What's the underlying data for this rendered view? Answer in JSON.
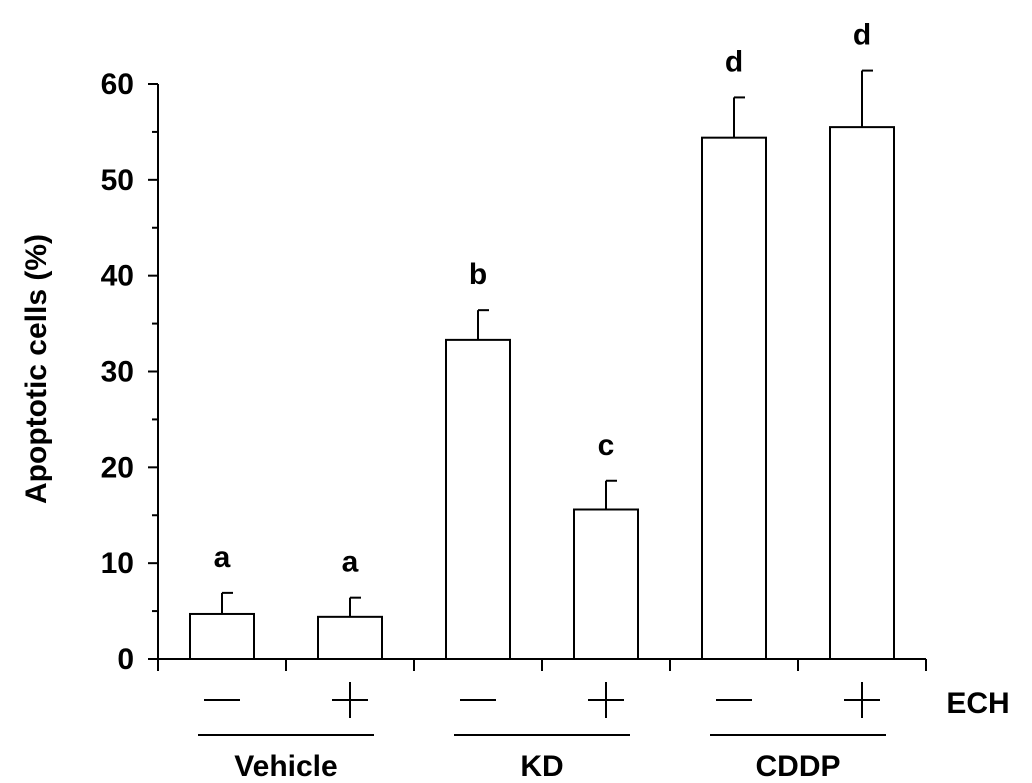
{
  "chart_data": {
    "type": "bar",
    "ylabel": "Apoptotic cells (%)",
    "ylim": [
      0,
      60
    ],
    "yticks": [
      0,
      10,
      20,
      30,
      40,
      50,
      60
    ],
    "grid": false,
    "bars": [
      {
        "group": "Vehicle",
        "ech": "—",
        "value": 4.7,
        "error": 2.2,
        "letter": "a"
      },
      {
        "group": "Vehicle",
        "ech": "+",
        "value": 4.4,
        "error": 2.0,
        "letter": "a"
      },
      {
        "group": "KD",
        "ech": "—",
        "value": 33.3,
        "error": 3.1,
        "letter": "b"
      },
      {
        "group": "KD",
        "ech": "+",
        "value": 15.6,
        "error": 3.0,
        "letter": "c"
      },
      {
        "group": "CDDP",
        "ech": "—",
        "value": 54.4,
        "error": 4.2,
        "letter": "d"
      },
      {
        "group": "CDDP",
        "ech": "+",
        "value": 55.5,
        "error": 5.9,
        "letter": "d"
      }
    ],
    "groups": [
      "Vehicle",
      "KD",
      "CDDP"
    ],
    "treatment_label": "ECH",
    "colors": {
      "bar_fill": "#ffffff",
      "stroke": "#000000"
    }
  }
}
